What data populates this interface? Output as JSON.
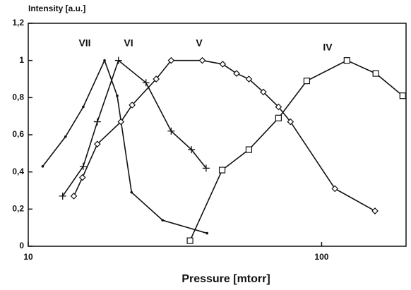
{
  "chart_data": {
    "type": "line",
    "ylabel": "Intensity [a.u.]",
    "xlabel": "Pressure [mtorr]",
    "log_x": true,
    "xlim": [
      10,
      194
    ],
    "ylim": [
      0,
      1.2
    ],
    "xticks": [
      10,
      100
    ],
    "yticks": [
      0,
      {
        "value": 0.2,
        "label": "0,2"
      },
      {
        "value": 0.4,
        "label": "0,4"
      },
      {
        "value": 0.6,
        "label": "0,6"
      },
      {
        "value": 0.8,
        "label": "0,8"
      },
      1,
      {
        "value": 1.2,
        "label": "1,2"
      }
    ],
    "series": [
      {
        "name": "VII",
        "color": "#111111",
        "marker": "dot",
        "x": [
          11.2,
          13.4,
          15.4,
          18.2,
          20.1,
          22.5,
          28.7,
          40.7
        ],
        "values": [
          0.43,
          0.59,
          0.75,
          1.0,
          0.81,
          0.29,
          0.14,
          0.07
        ]
      },
      {
        "name": "VI",
        "color": "#111111",
        "marker": "plus",
        "x": [
          13.1,
          15.4,
          17.2,
          20.3,
          25.2,
          30.7,
          36.0,
          40.4
        ],
        "values": [
          0.27,
          0.43,
          0.67,
          1.0,
          0.88,
          0.62,
          0.52,
          0.42
        ]
      },
      {
        "name": "V",
        "color": "#111111",
        "marker": "diamond",
        "x": [
          14.3,
          15.3,
          17.2,
          20.7,
          22.6,
          27.3,
          30.7,
          39.2,
          46.0,
          51.3,
          56.5,
          63.3,
          71.3,
          78.3,
          111,
          152
        ],
        "values": [
          0.27,
          0.37,
          0.55,
          0.67,
          0.76,
          0.9,
          1.0,
          1.0,
          0.98,
          0.93,
          0.9,
          0.83,
          0.75,
          0.67,
          0.31,
          0.19
        ]
      },
      {
        "name": "IV",
        "color": "#111111",
        "marker": "square",
        "x": [
          35.6,
          45.8,
          56.5,
          71.3,
          89,
          122,
          153,
          189
        ],
        "values": [
          0.03,
          0.41,
          0.52,
          0.69,
          0.89,
          1.0,
          0.93,
          0.81
        ]
      }
    ]
  }
}
